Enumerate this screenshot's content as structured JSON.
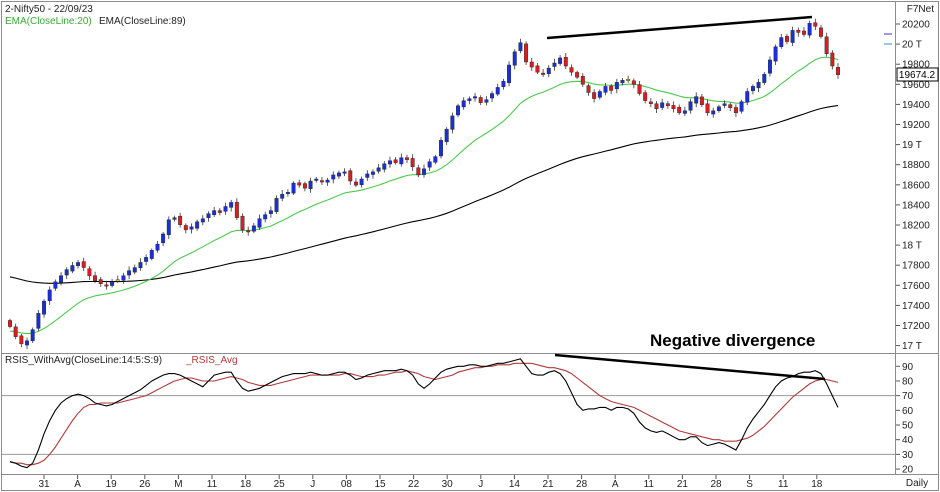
{
  "header": {
    "symbol_date": "2-Nifty50 - 22/09/23",
    "brand": "F7Net"
  },
  "price_panel": {
    "ema_fast_label": "EMA(CloseLine:20)",
    "ema_slow_label": "EMA(CloseLine:89)",
    "last_price": "19674.2",
    "annotation": "Negative divergence"
  },
  "rsi_panel": {
    "label_main": "RSIS_WithAvg(CloseLine:14:5:S:9)",
    "label_avg": "_RSIS_Avg"
  },
  "footer": {
    "period": "Daily"
  },
  "colors": {
    "up_candle": "#1a2fd6",
    "down_candle": "#d81e1e",
    "doji_candle": "#f0c419",
    "ema_fast": "#4cc94c",
    "ema_slow": "#000000",
    "rsi_line": "#000000",
    "rsi_avg": "#b03a3a",
    "trendline": "#000000"
  },
  "chart_data": [
    {
      "type": "candlestick",
      "ylim": [
        16950,
        20350
      ],
      "y_ticks": [
        "20200",
        "20 T",
        "19800",
        "19600",
        "19400",
        "19200",
        "19 T",
        "18800",
        "18600",
        "18400",
        "18200",
        "18 T",
        "17800",
        "17600",
        "17400",
        "17200",
        "17 T"
      ],
      "x_ticks": [
        "31",
        "A",
        "19",
        "26",
        "M",
        "11",
        "18",
        "25",
        "J",
        "08",
        "15",
        "22",
        "30",
        "J",
        "14",
        "21",
        "28",
        "A",
        "11",
        "21",
        "28",
        "S",
        "11",
        "18"
      ],
      "closes": [
        17200,
        17100,
        17030,
        17060,
        17170,
        17330,
        17450,
        17560,
        17640,
        17700,
        17760,
        17800,
        17830,
        17780,
        17700,
        17650,
        17620,
        17600,
        17640,
        17660,
        17700,
        17750,
        17780,
        17830,
        17880,
        17950,
        18010,
        18110,
        18250,
        18270,
        18200,
        18150,
        18180,
        18230,
        18260,
        18310,
        18340,
        18320,
        18380,
        18420,
        18270,
        18150,
        18130,
        18190,
        18260,
        18300,
        18340,
        18460,
        18500,
        18520,
        18610,
        18590,
        18560,
        18630,
        18650,
        18620,
        18640,
        18690,
        18710,
        18720,
        18630,
        18590,
        18650,
        18700,
        18720,
        18760,
        18800,
        18830,
        18810,
        18860,
        18840,
        18770,
        18690,
        18750,
        18820,
        18870,
        19030,
        19140,
        19270,
        19370,
        19420,
        19440,
        19460,
        19400,
        19430,
        19490,
        19550,
        19610,
        19770,
        19900,
        19990,
        19800,
        19750,
        19700,
        19680,
        19740,
        19790,
        19840,
        19760,
        19700,
        19650,
        19580,
        19500,
        19440,
        19510,
        19560,
        19520,
        19600,
        19620,
        19630,
        19580,
        19490,
        19420,
        19390,
        19340,
        19400,
        19370,
        19340,
        19300,
        19320,
        19410,
        19460,
        19380,
        19300,
        19320,
        19360,
        19390,
        19350,
        19300,
        19410,
        19510,
        19560,
        19600,
        19680,
        19820,
        19950,
        20040,
        20000,
        20110,
        20090,
        20070,
        20180,
        20150,
        20050,
        19880,
        19760,
        19674.2
      ],
      "series": [
        {
          "name": "EMA(CloseLine:20)",
          "color": "#4cc94c"
        },
        {
          "name": "EMA(CloseLine:89)",
          "color": "#000000"
        }
      ],
      "ema_slow_start": 17700
    },
    {
      "type": "line",
      "ylim": [
        18,
        97
      ],
      "y_ticks": [
        "90",
        "80",
        "70",
        "60",
        "50",
        "40",
        "30",
        "20"
      ],
      "reference_lines": [
        70,
        30
      ],
      "series": [
        {
          "name": "RSIS_WithAvg(CloseLine:14:5:S:9)",
          "color": "#000000",
          "values": [
            25,
            24,
            22,
            21,
            24,
            33,
            44,
            53,
            60,
            65,
            68,
            70,
            71,
            70,
            68,
            65,
            64,
            63,
            64,
            66,
            68,
            70,
            72,
            74,
            77,
            80,
            82,
            84,
            85,
            85,
            84,
            82,
            80,
            78,
            76,
            80,
            84,
            85,
            86,
            86,
            80,
            75,
            73,
            74,
            75,
            77,
            79,
            81,
            83,
            84,
            85,
            85,
            85,
            86,
            85,
            84,
            84,
            85,
            86,
            86,
            84,
            81,
            82,
            84,
            85,
            86,
            87,
            87,
            87,
            88,
            87,
            84,
            78,
            75,
            78,
            82,
            86,
            88,
            89,
            90,
            90,
            91,
            91,
            90,
            90,
            91,
            92,
            92,
            93,
            94,
            95,
            90,
            85,
            84,
            84,
            86,
            87,
            85,
            80,
            72,
            64,
            60,
            61,
            61,
            62,
            62,
            60,
            62,
            62,
            61,
            58,
            52,
            48,
            46,
            45,
            46,
            44,
            42,
            40,
            40,
            42,
            42,
            38,
            36,
            37,
            38,
            37,
            35,
            33,
            40,
            48,
            54,
            59,
            64,
            70,
            76,
            80,
            82,
            83,
            85,
            86,
            86,
            87,
            85,
            78,
            70,
            62
          ]
        },
        {
          "name": "_RSIS_Avg",
          "color": "#b03a3a",
          "values": [
            25,
            24,
            24,
            23,
            23,
            24,
            26,
            30,
            35,
            41,
            47,
            53,
            58,
            62,
            64,
            64,
            65,
            65,
            65,
            65,
            66,
            67,
            68,
            69,
            70,
            72,
            74,
            76,
            78,
            80,
            81,
            82,
            82,
            81,
            80,
            80,
            80,
            81,
            82,
            83,
            82,
            81,
            79,
            78,
            77,
            77,
            77,
            78,
            79,
            80,
            81,
            82,
            83,
            84,
            84,
            84,
            84,
            84,
            84,
            85,
            85,
            84,
            83,
            83,
            83,
            84,
            84,
            85,
            86,
            86,
            87,
            86,
            85,
            83,
            82,
            81,
            82,
            83,
            84,
            86,
            87,
            88,
            89,
            89,
            90,
            90,
            91,
            91,
            91,
            92,
            92,
            92,
            92,
            91,
            90,
            89,
            89,
            88,
            87,
            85,
            82,
            79,
            76,
            73,
            70,
            68,
            66,
            65,
            64,
            63,
            62,
            60,
            58,
            56,
            54,
            52,
            50,
            48,
            46,
            45,
            44,
            43,
            42,
            41,
            40,
            40,
            39,
            39,
            39,
            40,
            41,
            43,
            46,
            49,
            53,
            57,
            61,
            65,
            69,
            72,
            75,
            78,
            80,
            81,
            81,
            80,
            79
          ]
        }
      ]
    }
  ]
}
